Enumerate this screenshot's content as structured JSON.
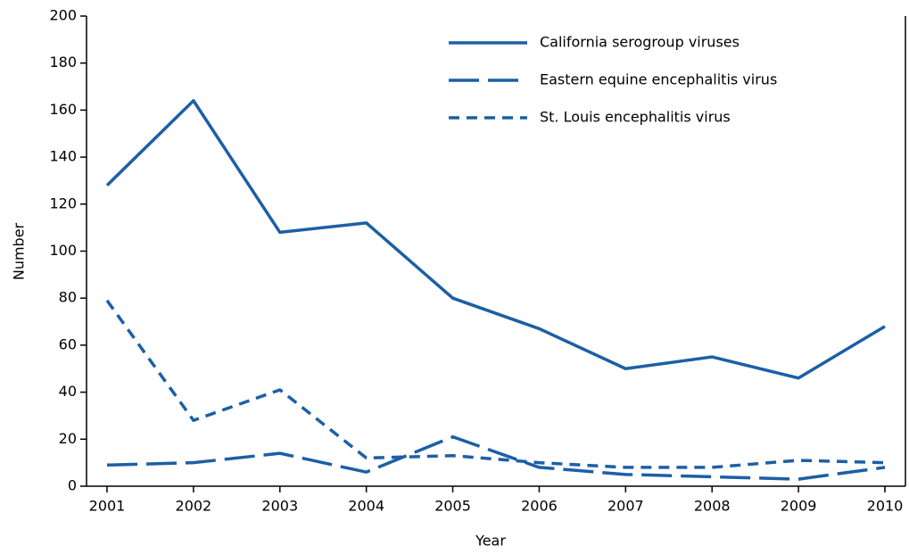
{
  "chart_data": {
    "type": "line",
    "x_label": "Year",
    "y_label": "Number",
    "categories": [
      "2001",
      "2002",
      "2003",
      "2004",
      "2005",
      "2006",
      "2007",
      "2008",
      "2009",
      "2010"
    ],
    "series": [
      {
        "name": "California serogroup viruses",
        "color": "#1c5fa6",
        "dash": "solid",
        "values": [
          128,
          164,
          108,
          112,
          80,
          67,
          50,
          55,
          46,
          68
        ]
      },
      {
        "name": "Eastern equine encephalitis virus",
        "color": "#1c5fa6",
        "dash": "long",
        "values": [
          9,
          10,
          14,
          6,
          21,
          8,
          5,
          4,
          3,
          8
        ]
      },
      {
        "name": "St. Louis encephalitis virus",
        "color": "#1c5fa6",
        "dash": "short",
        "values": [
          79,
          28,
          41,
          12,
          13,
          10,
          8,
          8,
          11,
          10
        ]
      }
    ],
    "ylim": [
      0,
      200
    ],
    "yticks": [
      0,
      20,
      40,
      60,
      80,
      100,
      120,
      140,
      160,
      180,
      200
    ],
    "legend": "upper right"
  }
}
